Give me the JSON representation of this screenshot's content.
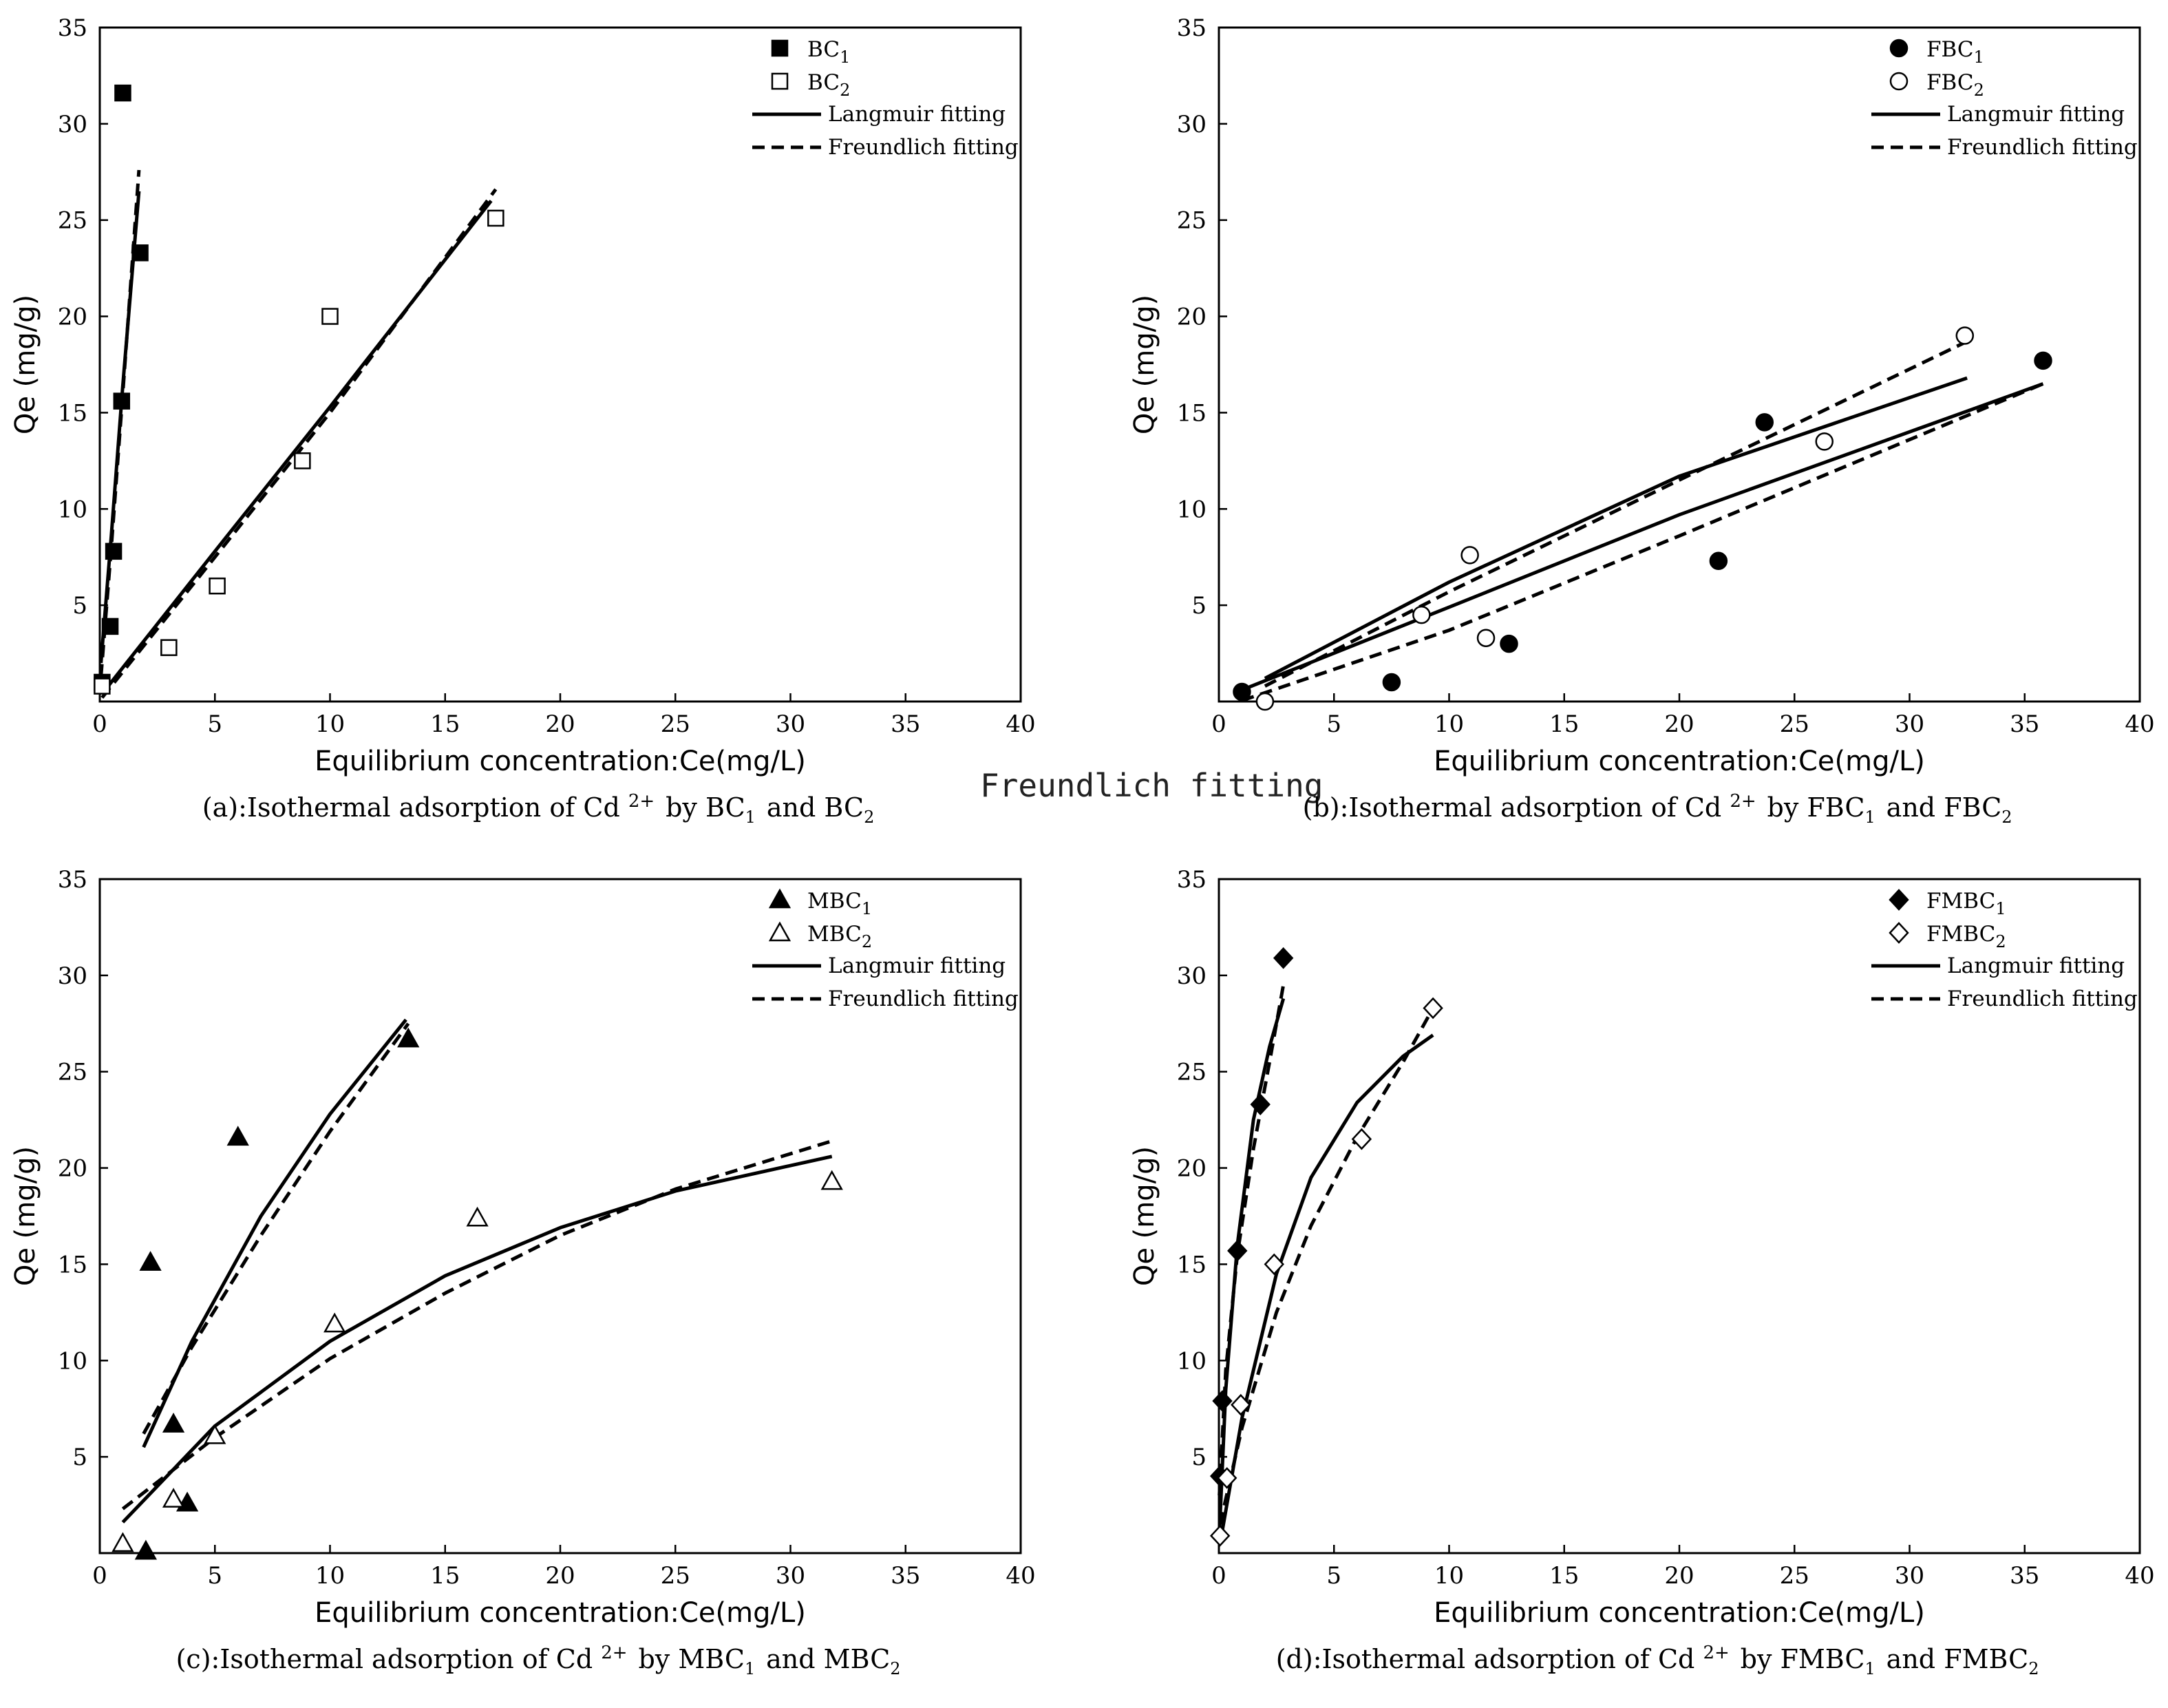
{
  "stray_text": "Freundlich fitting",
  "chart_data": [
    {
      "type": "scatter",
      "caption": "(a):Isothermal adsorption of Cd 2+ by BC1 and BC2",
      "xlabel": "Equilibrium concentration:Ce(mg/L)",
      "ylabel": "Qe (mg/g)",
      "xlim": [
        0,
        40
      ],
      "ylim": [
        0,
        35
      ],
      "xticks": [
        0,
        5,
        10,
        15,
        20,
        25,
        30,
        35,
        40
      ],
      "yticks": [
        5,
        10,
        15,
        20,
        25,
        30,
        35
      ],
      "legend_position": "top-right",
      "legend": [
        "BC1",
        "BC2",
        "Langmuir fitting",
        "Freundlich fitting"
      ],
      "series": [
        {
          "name": "BC1",
          "marker": "square-filled",
          "x": [
            0.1,
            0.45,
            0.6,
            0.95,
            1.0,
            1.75
          ],
          "y": [
            1.0,
            3.9,
            7.8,
            15.6,
            31.6,
            23.3
          ]
        },
        {
          "name": "BC2",
          "marker": "square-open",
          "x": [
            0.1,
            3.0,
            5.1,
            8.8,
            10.0,
            17.2
          ],
          "y": [
            0.8,
            2.8,
            6.0,
            12.5,
            20.0,
            25.1
          ]
        }
      ],
      "fits": [
        {
          "name": "Langmuir fitting",
          "style": "solid",
          "x": [
            0.05,
            0.5,
            1.0,
            1.7
          ],
          "y": [
            2.0,
            8.6,
            16.4,
            26.5
          ]
        },
        {
          "name": "Freundlich fitting",
          "style": "dashed",
          "x": [
            0.05,
            0.5,
            1.0,
            1.7
          ],
          "y": [
            1.3,
            8.0,
            16.0,
            27.6
          ]
        },
        {
          "name": "Langmuir fitting",
          "style": "solid",
          "x": [
            0.1,
            5,
            10,
            17
          ],
          "y": [
            0.4,
            7.8,
            15.3,
            26.0
          ]
        },
        {
          "name": "Freundlich fitting",
          "style": "dashed",
          "x": [
            0.1,
            5,
            10,
            17.2
          ],
          "y": [
            0.2,
            7.5,
            15.0,
            26.6
          ]
        }
      ]
    },
    {
      "type": "scatter",
      "caption": "(b):Isothermal adsorption of Cd 2+ by FBC1 and FBC2",
      "xlabel": "Equilibrium concentration:Ce(mg/L)",
      "ylabel": "Qe (mg/g)",
      "xlim": [
        0,
        40
      ],
      "ylim": [
        0,
        35
      ],
      "xticks": [
        0,
        5,
        10,
        15,
        20,
        25,
        30,
        35,
        40
      ],
      "yticks": [
        5,
        10,
        15,
        20,
        25,
        30,
        35
      ],
      "legend_position": "top-right",
      "legend": [
        "FBC1",
        "FBC2",
        "Langmuir fitting",
        "Freundlich fitting"
      ],
      "series": [
        {
          "name": "FBC1",
          "marker": "circle-filled",
          "x": [
            1.0,
            7.5,
            12.6,
            21.7,
            23.7,
            35.8
          ],
          "y": [
            0.5,
            1.0,
            3.0,
            7.3,
            14.5,
            17.7
          ]
        },
        {
          "name": "FBC2",
          "marker": "circle-open",
          "x": [
            2.0,
            8.8,
            10.9,
            11.6,
            26.3,
            32.4
          ],
          "y": [
            0.0,
            4.5,
            7.6,
            3.3,
            13.5,
            19.0
          ]
        }
      ],
      "fits": [
        {
          "name": "Langmuir fitting",
          "style": "solid",
          "x": [
            2,
            10,
            20,
            32.5
          ],
          "y": [
            1.2,
            6.2,
            11.7,
            16.8
          ]
        },
        {
          "name": "Langmuir fitting",
          "style": "solid",
          "x": [
            1,
            10,
            20,
            35.8
          ],
          "y": [
            0.6,
            4.9,
            9.7,
            16.5
          ]
        },
        {
          "name": "Freundlich fitting",
          "style": "dashed",
          "x": [
            1,
            10,
            20,
            35.8
          ],
          "y": [
            0.05,
            3.7,
            8.6,
            16.5
          ]
        },
        {
          "name": "Freundlich fitting",
          "style": "dashed",
          "x": [
            2,
            10,
            20,
            32.5
          ],
          "y": [
            0.8,
            5.7,
            11.5,
            18.7
          ]
        }
      ]
    },
    {
      "type": "scatter",
      "caption": "(c):Isothermal adsorption of Cd 2+ by MBC1 and MBC2",
      "xlabel": "Equilibrium concentration:Ce(mg/L)",
      "ylabel": "Qe (mg/g)",
      "xlim": [
        0,
        40
      ],
      "ylim": [
        0,
        35
      ],
      "xticks": [
        0,
        5,
        10,
        15,
        20,
        25,
        30,
        35,
        40
      ],
      "yticks": [
        5,
        10,
        15,
        20,
        25,
        30,
        35
      ],
      "legend_position": "top-right",
      "legend": [
        "MBC1",
        "MBC2",
        "Langmuir fitting",
        "Freundlich fitting"
      ],
      "series": [
        {
          "name": "MBC1",
          "marker": "triangle-filled",
          "x": [
            2.0,
            2.2,
            3.2,
            3.8,
            6.0,
            13.4
          ],
          "y": [
            0.1,
            15.1,
            6.7,
            2.6,
            21.6,
            26.7
          ]
        },
        {
          "name": "MBC2",
          "marker": "triangle-open",
          "x": [
            1.0,
            3.2,
            5.0,
            10.2,
            16.4,
            31.8
          ],
          "y": [
            0.5,
            2.8,
            6.1,
            11.9,
            17.4,
            19.3
          ]
        }
      ],
      "fits": [
        {
          "name": "Langmuir fitting",
          "style": "solid",
          "x": [
            1.9,
            4,
            7,
            10,
            13.3
          ],
          "y": [
            5.5,
            11.0,
            17.5,
            22.8,
            27.7
          ]
        },
        {
          "name": "Freundlich fitting",
          "style": "dashed",
          "x": [
            1.9,
            4,
            7,
            10,
            13.4
          ],
          "y": [
            6.2,
            10.7,
            16.5,
            21.9,
            27.5
          ]
        },
        {
          "name": "Langmuir fitting",
          "style": "solid",
          "x": [
            1,
            5,
            10,
            15,
            20,
            25,
            31.8
          ],
          "y": [
            1.6,
            6.6,
            11.0,
            14.4,
            16.9,
            18.8,
            20.6
          ]
        },
        {
          "name": "Freundlich fitting",
          "style": "dashed",
          "x": [
            1,
            5,
            10,
            15,
            20,
            25,
            31.8
          ],
          "y": [
            2.3,
            6.0,
            10.1,
            13.5,
            16.5,
            18.9,
            21.4
          ]
        }
      ]
    },
    {
      "type": "scatter",
      "caption": "(d):Isothermal adsorption of Cd 2+ by FMBC1 and FMBC2",
      "xlabel": "Equilibrium concentration:Ce(mg/L)",
      "ylabel": "Qe (mg/g)",
      "xlim": [
        0,
        40
      ],
      "ylim": [
        0,
        35
      ],
      "xticks": [
        0,
        5,
        10,
        15,
        20,
        25,
        30,
        35,
        40
      ],
      "yticks": [
        5,
        10,
        15,
        20,
        25,
        30,
        35
      ],
      "legend_position": "top-right",
      "legend": [
        "FMBC1",
        "FMBC2",
        "Langmuir fitting",
        "Freundlich fitting"
      ],
      "series": [
        {
          "name": "FMBC1",
          "marker": "diamond-filled",
          "x": [
            0.05,
            0.15,
            0.8,
            1.8,
            2.8
          ],
          "y": [
            4.0,
            7.9,
            15.7,
            23.3,
            30.9
          ]
        },
        {
          "name": "FMBC2",
          "marker": "diamond-open",
          "x": [
            0.05,
            0.35,
            0.95,
            2.4,
            6.2,
            9.3
          ],
          "y": [
            0.9,
            3.9,
            7.7,
            15.0,
            21.5,
            28.3
          ]
        }
      ],
      "fits": [
        {
          "name": "Langmuir fitting",
          "style": "solid",
          "x": [
            0.02,
            0.3,
            0.8,
            1.5,
            2.2,
            2.8
          ],
          "y": [
            1.0,
            8.5,
            16.0,
            22.5,
            26.3,
            28.8
          ]
        },
        {
          "name": "Freundlich fitting",
          "style": "dashed",
          "x": [
            0.02,
            0.3,
            0.8,
            1.5,
            2.2,
            2.8
          ],
          "y": [
            3.0,
            9.5,
            15.5,
            21.0,
            25.5,
            29.5
          ]
        },
        {
          "name": "Langmuir fitting",
          "style": "solid",
          "x": [
            0.05,
            1,
            2.5,
            4,
            6,
            8,
            9.3
          ],
          "y": [
            0.5,
            7.0,
            14.5,
            19.5,
            23.4,
            25.8,
            26.9
          ]
        },
        {
          "name": "Freundlich fitting",
          "style": "dashed",
          "x": [
            0.05,
            1,
            2.5,
            4,
            6,
            8,
            9.3
          ],
          "y": [
            1.5,
            6.5,
            12.5,
            17.0,
            21.6,
            25.5,
            28.3
          ]
        }
      ]
    }
  ]
}
